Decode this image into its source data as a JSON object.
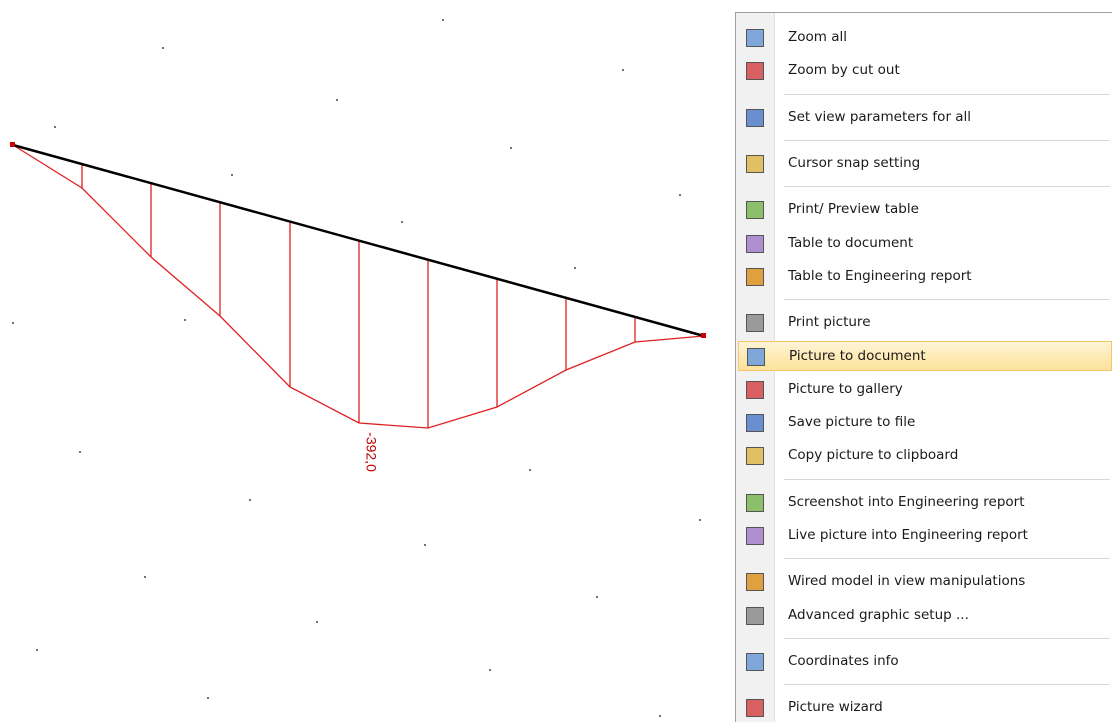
{
  "diagram": {
    "label": "-392,0"
  },
  "menu": {
    "groups": [
      [
        {
          "label": "Zoom all"
        },
        {
          "label": "Zoom by cut out"
        }
      ],
      [
        {
          "label": "Set view parameters for all"
        }
      ],
      [
        {
          "label": "Cursor snap setting"
        }
      ],
      [
        {
          "label": "Print/ Preview table"
        },
        {
          "label": "Table to document"
        },
        {
          "label": "Table to Engineering report"
        }
      ],
      [
        {
          "label": "Print picture"
        },
        {
          "label": "Picture to document",
          "highlighted": true
        },
        {
          "label": "Picture to gallery"
        },
        {
          "label": "Save picture to file"
        },
        {
          "label": "Copy picture to clipboard"
        }
      ],
      [
        {
          "label": "Screenshot into Engineering report"
        },
        {
          "label": "Live picture into Engineering report"
        }
      ],
      [
        {
          "label": "Wired model in view manipulations"
        },
        {
          "label": "Advanced graphic setup ..."
        }
      ],
      [
        {
          "label": "Coordinates info"
        }
      ],
      [
        {
          "label": "Picture wizard"
        }
      ]
    ]
  }
}
